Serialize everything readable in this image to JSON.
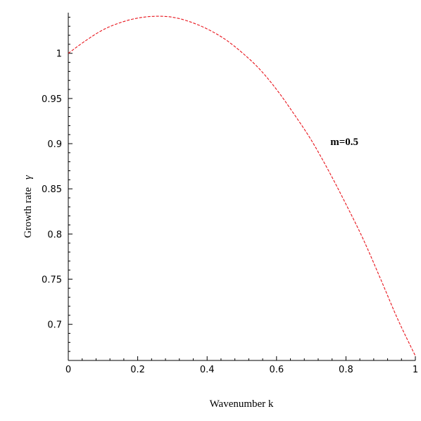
{
  "chart_data": {
    "type": "line",
    "title": "",
    "xlabel": "Wavenumber  k",
    "ylabel_text": "Growth rate",
    "ylabel_symbol": "γ",
    "xlim": [
      0,
      1
    ],
    "ylim": [
      0.66,
      1.045
    ],
    "x_ticks": [
      0,
      0.2,
      0.4,
      0.6,
      0.8,
      1
    ],
    "x_tick_labels": [
      "0",
      "0.2",
      "0.4",
      "0.6",
      "0.8",
      "1"
    ],
    "y_ticks": [
      0.7,
      0.75,
      0.8,
      0.85,
      0.9,
      0.95,
      1
    ],
    "y_tick_labels": [
      "0.7",
      "0.75",
      "0.8",
      "0.85",
      "0.9",
      "0.95",
      "1"
    ],
    "grid": false,
    "annotation": {
      "text": "m=0.5",
      "x": 0.755,
      "y": 0.9
    },
    "series": [
      {
        "color": "#e8141c",
        "style": "dashed",
        "x": [
          0,
          0.05,
          0.1,
          0.15,
          0.2,
          0.25,
          0.3,
          0.35,
          0.4,
          0.45,
          0.5,
          0.55,
          0.6,
          0.65,
          0.7,
          0.75,
          0.8,
          0.85,
          0.9,
          0.95,
          1
        ],
        "y": [
          1.0,
          1.014,
          1.026,
          1.034,
          1.039,
          1.041,
          1.04,
          1.035,
          1.027,
          1.016,
          1.001,
          0.983,
          0.96,
          0.933,
          0.904,
          0.87,
          0.833,
          0.794,
          0.75,
          0.705,
          0.665
        ]
      }
    ]
  }
}
